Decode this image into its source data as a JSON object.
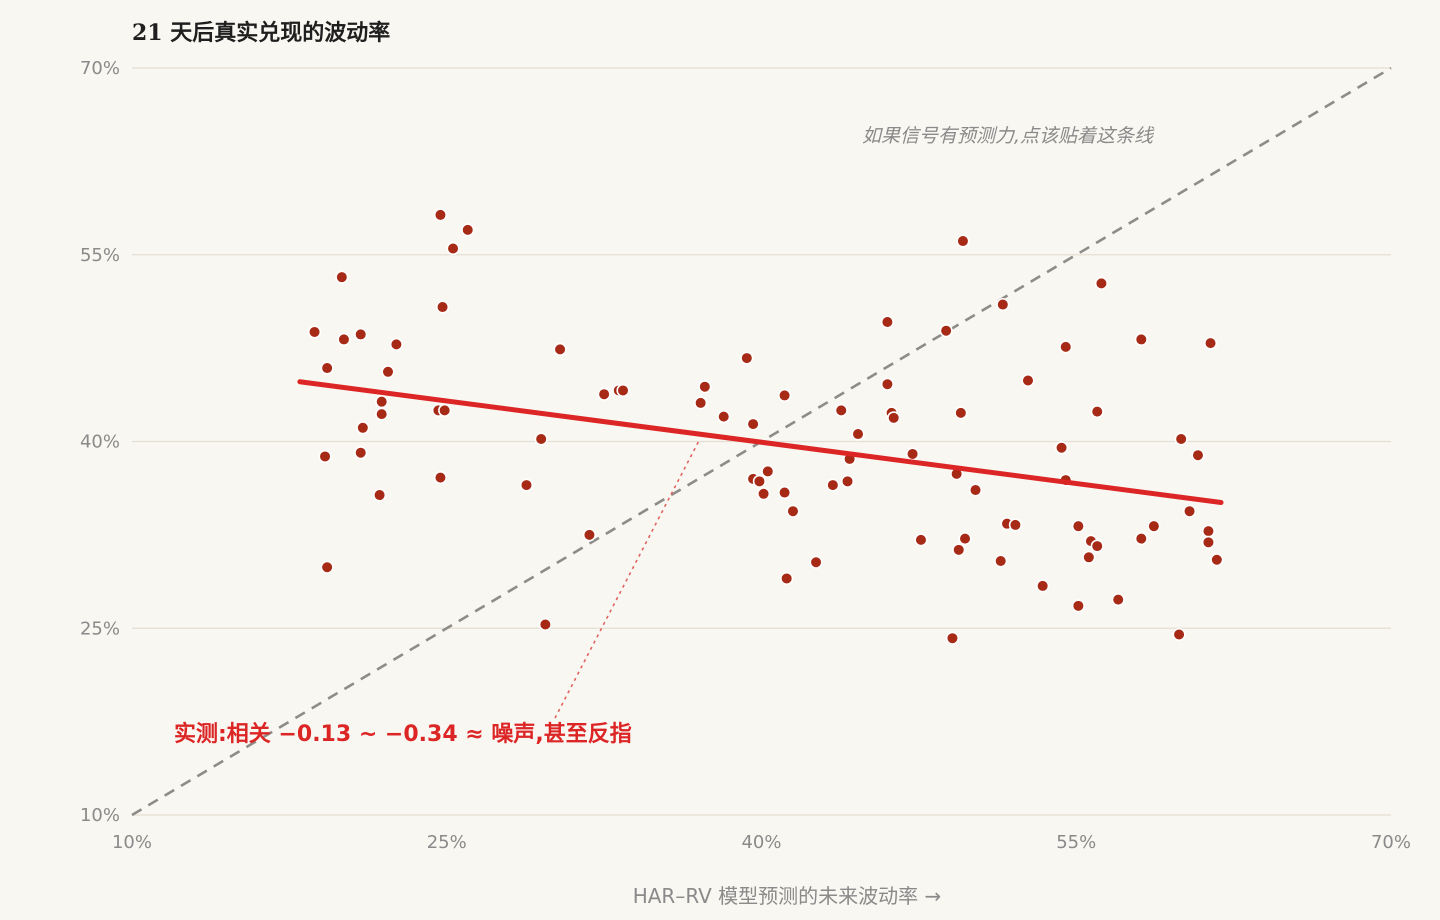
{
  "chart_data": {
    "type": "scatter",
    "title": "21 天后真实兑现的波动率",
    "xlabel": "HAR–RV 模型预测的未来波动率 →",
    "ylabel": "",
    "xlim": [
      10,
      70
    ],
    "ylim": [
      10,
      70
    ],
    "x_ticks": [
      10,
      25,
      40,
      55,
      70
    ],
    "y_ticks": [
      10,
      25,
      40,
      55,
      70
    ],
    "x_tick_labels": [
      "10%",
      "25%",
      "40%",
      "55%",
      "70%"
    ],
    "y_tick_labels": [
      "10%",
      "25%",
      "40%",
      "55%",
      "70%"
    ],
    "grid": "horizontal",
    "reference_line": {
      "from": [
        10,
        10
      ],
      "to": [
        70,
        70
      ],
      "style": "dashed",
      "label": "如果信号有预测力,点该贴着这条线"
    },
    "fit_line": {
      "from": [
        18.0,
        44.8
      ],
      "to": [
        61.9,
        35.1
      ],
      "color": "#dc2626"
    },
    "annotation": {
      "text": "实测:相关 −0.13 ~ −0.34 ≈ 噪声,甚至反指",
      "color": "#dc2626",
      "points_to": [
        37.0,
        40.0
      ]
    },
    "point_color": "#a62a15",
    "points": [
      [
        18.7,
        48.8
      ],
      [
        19.2,
        38.8
      ],
      [
        19.3,
        45.9
      ],
      [
        19.3,
        29.9
      ],
      [
        20.0,
        53.2
      ],
      [
        20.1,
        48.2
      ],
      [
        20.9,
        39.1
      ],
      [
        20.9,
        48.6
      ],
      [
        21.0,
        41.1
      ],
      [
        21.8,
        35.7
      ],
      [
        21.9,
        42.2
      ],
      [
        21.9,
        43.2
      ],
      [
        22.2,
        45.6
      ],
      [
        22.6,
        47.8
      ],
      [
        24.6,
        42.5
      ],
      [
        24.7,
        37.1
      ],
      [
        24.7,
        58.2
      ],
      [
        24.8,
        50.8
      ],
      [
        24.9,
        42.5
      ],
      [
        25.3,
        55.5
      ],
      [
        26.0,
        57.0
      ],
      [
        28.8,
        36.5
      ],
      [
        29.5,
        40.2
      ],
      [
        29.7,
        25.3
      ],
      [
        30.4,
        47.4
      ],
      [
        31.8,
        32.5
      ],
      [
        32.5,
        43.8
      ],
      [
        33.2,
        44.1
      ],
      [
        33.4,
        44.1
      ],
      [
        37.1,
        43.1
      ],
      [
        37.3,
        44.4
      ],
      [
        38.2,
        42.0
      ],
      [
        39.3,
        46.7
      ],
      [
        39.6,
        41.4
      ],
      [
        39.6,
        37.0
      ],
      [
        39.9,
        36.8
      ],
      [
        40.1,
        35.8
      ],
      [
        40.3,
        37.6
      ],
      [
        41.1,
        35.9
      ],
      [
        41.1,
        43.7
      ],
      [
        41.2,
        29.0
      ],
      [
        41.5,
        34.4
      ],
      [
        42.6,
        30.3
      ],
      [
        43.4,
        36.5
      ],
      [
        43.8,
        42.5
      ],
      [
        44.1,
        36.8
      ],
      [
        44.2,
        38.6
      ],
      [
        44.6,
        40.6
      ],
      [
        46.0,
        44.6
      ],
      [
        46.0,
        49.6
      ],
      [
        46.2,
        42.3
      ],
      [
        46.3,
        41.9
      ],
      [
        47.2,
        39.0
      ],
      [
        47.6,
        32.1
      ],
      [
        48.8,
        48.9
      ],
      [
        49.1,
        24.2
      ],
      [
        49.3,
        37.4
      ],
      [
        49.4,
        31.3
      ],
      [
        49.5,
        42.3
      ],
      [
        49.6,
        56.1
      ],
      [
        49.7,
        32.2
      ],
      [
        50.2,
        36.1
      ],
      [
        51.4,
        30.4
      ],
      [
        51.5,
        51.0
      ],
      [
        51.7,
        33.4
      ],
      [
        52.1,
        33.3
      ],
      [
        52.7,
        44.9
      ],
      [
        53.4,
        28.4
      ],
      [
        54.3,
        39.5
      ],
      [
        54.5,
        47.6
      ],
      [
        54.5,
        36.9
      ],
      [
        55.1,
        33.2
      ],
      [
        55.1,
        26.8
      ],
      [
        55.6,
        30.7
      ],
      [
        55.7,
        32.0
      ],
      [
        56.0,
        42.4
      ],
      [
        56.0,
        31.6
      ],
      [
        56.2,
        52.7
      ],
      [
        57.0,
        27.3
      ],
      [
        58.1,
        48.2
      ],
      [
        58.1,
        32.2
      ],
      [
        58.7,
        33.2
      ],
      [
        59.9,
        24.5
      ],
      [
        60.0,
        40.2
      ],
      [
        60.4,
        34.4
      ],
      [
        60.8,
        38.9
      ],
      [
        61.3,
        32.8
      ],
      [
        61.3,
        31.9
      ],
      [
        61.4,
        47.9
      ],
      [
        61.7,
        30.5
      ]
    ]
  }
}
